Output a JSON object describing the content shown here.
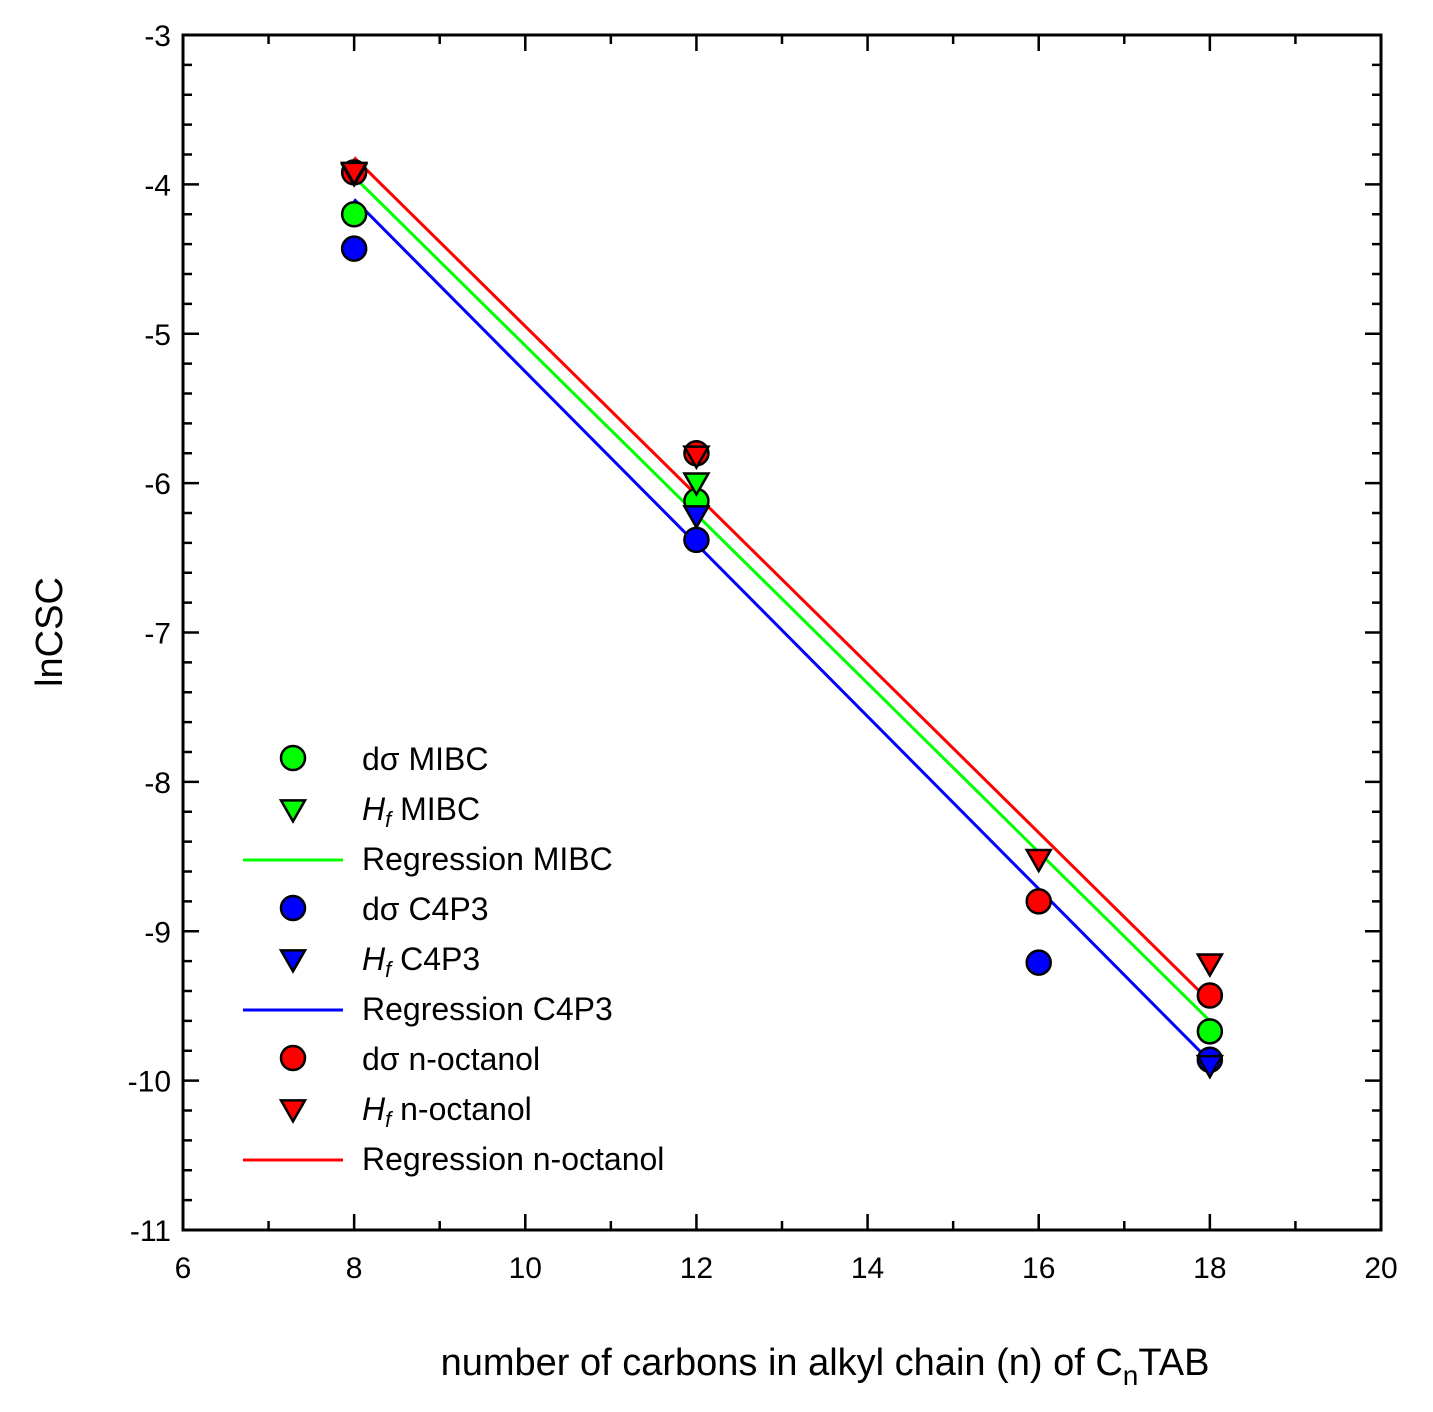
{
  "chart_data": {
    "type": "scatter",
    "title": "",
    "xlabel_parts": {
      "prefix": "number of carbons in alkyl chain (n) of C",
      "subscript": "n",
      "suffix": "TAB"
    },
    "ylabel": "lnCSC",
    "xlim": [
      6,
      20
    ],
    "ylim": [
      -11,
      -3
    ],
    "x_ticks": [
      6,
      8,
      10,
      12,
      14,
      16,
      18,
      20
    ],
    "y_ticks": [
      -3,
      -4,
      -5,
      -6,
      -7,
      -8,
      -9,
      -10,
      -11
    ],
    "x_tick_labels": [
      "6",
      "8",
      "10",
      "12",
      "14",
      "16",
      "18",
      "20"
    ],
    "y_tick_labels": [
      "-3",
      "-4",
      "-5",
      "-6",
      "-7",
      "-8",
      "-9",
      "-10",
      "-11"
    ],
    "legend_position": "bottom-left",
    "series": [
      {
        "name": "dσ MIBC",
        "label_main": "dσ MIBC",
        "italic_prefix": "",
        "sub": "",
        "kind": "circle",
        "color": "#00ff00",
        "points": [
          [
            8,
            -4.2
          ],
          [
            12,
            -6.12
          ],
          [
            18,
            -9.67
          ]
        ]
      },
      {
        "name": "Hf MIBC",
        "label_main": " MIBC",
        "italic_prefix": "H",
        "sub": "f",
        "kind": "triangle",
        "color": "#00ff00",
        "points": [
          [
            8,
            -3.93
          ],
          [
            12,
            -6.0
          ]
        ]
      },
      {
        "name": "Regression MIBC",
        "label_main": "Regression MIBC",
        "italic_prefix": "",
        "sub": "",
        "kind": "line",
        "color": "#00ff00",
        "points": [
          [
            8,
            -3.95
          ],
          [
            18,
            -9.6
          ]
        ]
      },
      {
        "name": "dσ C4P3",
        "label_main": "dσ C4P3",
        "italic_prefix": "",
        "sub": "",
        "kind": "circle",
        "color": "#0000ff",
        "points": [
          [
            8,
            -4.43
          ],
          [
            12,
            -6.38
          ],
          [
            16,
            -9.21
          ],
          [
            18,
            -9.86
          ]
        ]
      },
      {
        "name": "Hf C4P3",
        "label_main": " C4P3",
        "italic_prefix": "H",
        "sub": "f",
        "kind": "triangle",
        "color": "#0000ff",
        "points": [
          [
            12,
            -6.22
          ],
          [
            18,
            -9.9
          ]
        ]
      },
      {
        "name": "Regression C4P3",
        "label_main": "Regression C4P3",
        "italic_prefix": "",
        "sub": "",
        "kind": "line",
        "color": "#0000ff",
        "points": [
          [
            8,
            -4.1
          ],
          [
            18,
            -9.87
          ]
        ]
      },
      {
        "name": "dσ n-octanol",
        "label_main": "dσ n-octanol",
        "italic_prefix": "",
        "sub": "",
        "kind": "circle",
        "color": "#ff0000",
        "points": [
          [
            8,
            -3.92
          ],
          [
            12,
            -5.8
          ],
          [
            16,
            -8.8
          ],
          [
            18,
            -9.43
          ]
        ]
      },
      {
        "name": "Hf n-octanol",
        "label_main": " n-octanol",
        "italic_prefix": "H",
        "sub": "f",
        "kind": "triangle",
        "color": "#ff0000",
        "points": [
          [
            8,
            -3.92
          ],
          [
            12,
            -5.82
          ],
          [
            16,
            -8.52
          ],
          [
            18,
            -9.22
          ]
        ]
      },
      {
        "name": "Regression n-octanol",
        "label_main": "Regression n-octanol",
        "italic_prefix": "",
        "sub": "",
        "kind": "line",
        "color": "#ff0000",
        "points": [
          [
            8,
            -3.82
          ],
          [
            18,
            -9.47
          ]
        ]
      }
    ]
  }
}
